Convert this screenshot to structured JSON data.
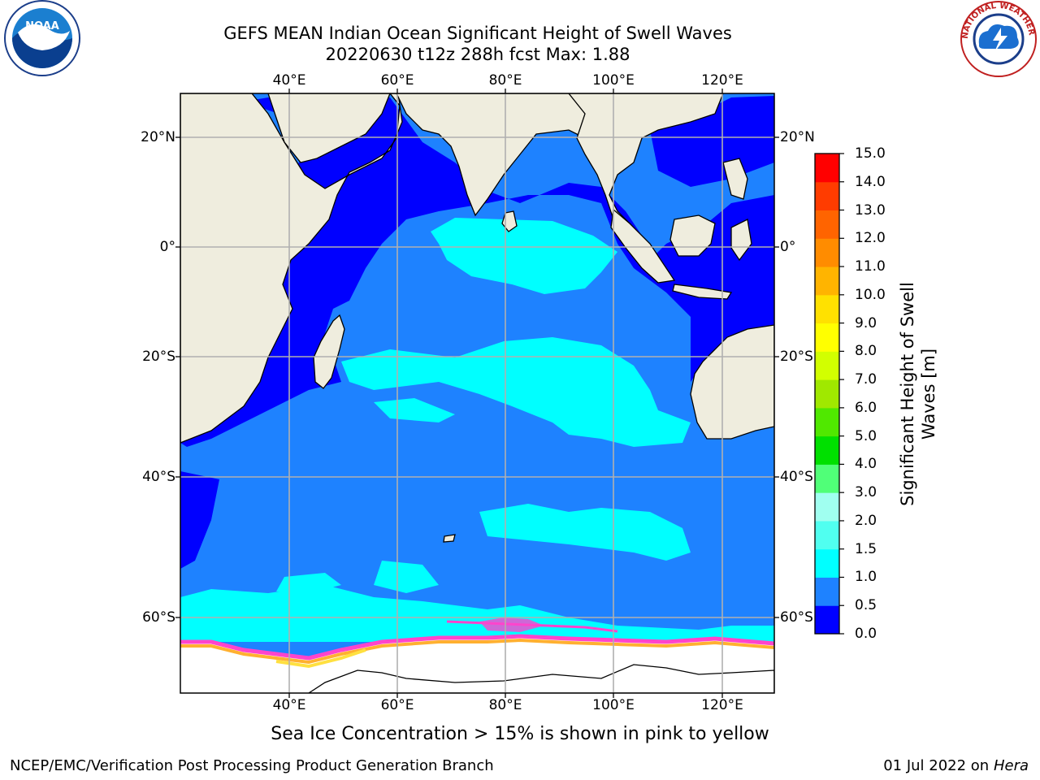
{
  "header": {
    "title": "GEFS MEAN Indian Ocean Significant Height of Swell Waves",
    "subtitle": "20220630 t12z 288h fcst   Max: 1.88"
  },
  "logos": {
    "left": {
      "text": "NOAA",
      "icon": "noaa-logo-icon"
    },
    "right": {
      "text": "NATIONAL WEATHER SERVICE",
      "icon": "nws-logo-icon"
    }
  },
  "map": {
    "lon_labels": [
      "40°E",
      "60°E",
      "80°E",
      "100°E",
      "120°E"
    ],
    "lat_labels": [
      "20°N",
      "0°",
      "20°S",
      "40°S",
      "60°S"
    ],
    "colors": {
      "land": "#efedde",
      "ice": "#ffffff",
      "gridline": "#b0b0b0",
      "ice_edge": [
        "#ff44cc",
        "#ffb030",
        "#ffe040"
      ]
    }
  },
  "colorbar": {
    "label_line1": "Significant Height of Swell",
    "label_line2": "Waves [m]",
    "ticks": [
      "0.0",
      "0.5",
      "1.0",
      "1.5",
      "2.0",
      "3.0",
      "4.0",
      "5.0",
      "6.0",
      "7.0",
      "8.0",
      "9.0",
      "10.0",
      "11.0",
      "12.0",
      "13.0",
      "14.0",
      "15.0"
    ],
    "colors": [
      "#0000ff",
      "#1e82ff",
      "#00ffff",
      "#50fff0",
      "#a0fff0",
      "#50ff78",
      "#00e000",
      "#50e800",
      "#a0e800",
      "#d2ff00",
      "#ffff00",
      "#ffe100",
      "#ffb400",
      "#ff8c00",
      "#ff6400",
      "#ff3c00",
      "#ff0000"
    ]
  },
  "footer": {
    "note": "Sea Ice Concentration > 15% is shown in pink to yellow",
    "credit": "NCEP/EMC/Verification Post Processing Product Generation Branch",
    "date": "01 Jul 2022 on ",
    "host": "Hera"
  }
}
